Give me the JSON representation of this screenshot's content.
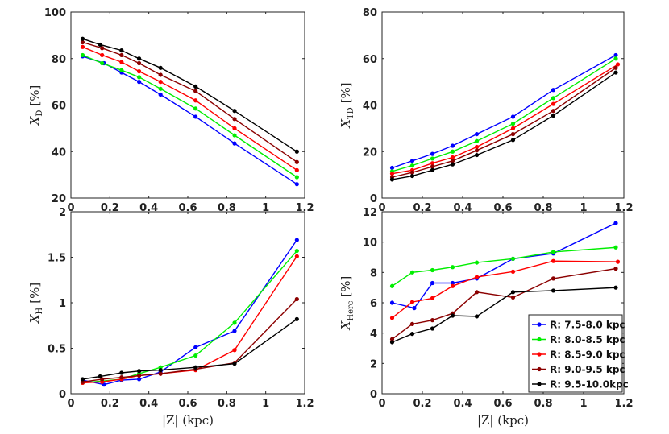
{
  "chart_data": [
    {
      "id": "xd",
      "type": "line",
      "ylabel_main": "X",
      "ylabel_sub": "D",
      "ylabel_unit": "[%]",
      "xlabel": "",
      "xlim": [
        0,
        1.2
      ],
      "ylim": [
        20,
        100
      ],
      "xticks": [
        "0",
        "0.2",
        "0.4",
        "0.6",
        "0.8",
        "1",
        "1.2"
      ],
      "yticks": [
        "20",
        "40",
        "60",
        "80",
        "100"
      ],
      "xtick_values": [
        0,
        0.2,
        0.4,
        0.6,
        0.8,
        1,
        1.2
      ],
      "ytick_values": [
        20,
        40,
        60,
        80,
        100
      ],
      "series": [
        {
          "name": "R: 7.5-8.0 kpc",
          "color": "#0000ff",
          "x": [
            0.06,
            0.17,
            0.26,
            0.35,
            0.46,
            0.64,
            0.84,
            1.16
          ],
          "y": [
            81,
            78,
            74,
            70,
            64.5,
            55,
            43.5,
            26
          ]
        },
        {
          "name": "R: 8.0-8.5 kpc",
          "color": "#00ee00",
          "x": [
            0.06,
            0.16,
            0.26,
            0.35,
            0.46,
            0.64,
            0.84,
            1.16
          ],
          "y": [
            81.5,
            78,
            75,
            72,
            67,
            58.5,
            47,
            29
          ]
        },
        {
          "name": "R: 8.5-9.0 kpc",
          "color": "#ff0000",
          "x": [
            0.06,
            0.16,
            0.26,
            0.35,
            0.46,
            0.64,
            0.84,
            1.16
          ],
          "y": [
            85,
            81.5,
            78.5,
            74.5,
            70,
            62,
            50,
            32
          ]
        },
        {
          "name": "R: 9.0-9.5 kpc",
          "color": "#8b0000",
          "x": [
            0.06,
            0.16,
            0.26,
            0.35,
            0.46,
            0.64,
            0.84,
            1.16
          ],
          "y": [
            87,
            84.5,
            81.5,
            78,
            73,
            66,
            54,
            35.5
          ]
        },
        {
          "name": "R: 9.5-10.0kpc",
          "color": "#000000",
          "x": [
            0.06,
            0.15,
            0.26,
            0.35,
            0.46,
            0.64,
            0.84,
            1.16
          ],
          "y": [
            88.5,
            86,
            83.5,
            80,
            76,
            68,
            57.5,
            40
          ]
        }
      ]
    },
    {
      "id": "xtd",
      "type": "line",
      "ylabel_main": "X",
      "ylabel_sub": "TD",
      "ylabel_unit": "[%]",
      "xlabel": "",
      "xlim": [
        0,
        1.2
      ],
      "ylim": [
        0,
        80
      ],
      "xticks": [
        "0",
        "0.2",
        "0.4",
        "0.6",
        "0.8",
        "1",
        "1.2"
      ],
      "yticks": [
        "0",
        "20",
        "40",
        "60",
        "80"
      ],
      "xtick_values": [
        0,
        0.2,
        0.4,
        0.6,
        0.8,
        1,
        1.2
      ],
      "ytick_values": [
        0,
        20,
        40,
        60,
        80
      ],
      "series": [
        {
          "name": "R: 7.5-8.0 kpc",
          "color": "#0000ff",
          "x": [
            0.05,
            0.15,
            0.25,
            0.35,
            0.47,
            0.65,
            0.85,
            1.16
          ],
          "y": [
            13,
            16,
            19,
            22.5,
            27.5,
            35,
            46.5,
            61.5
          ]
        },
        {
          "name": "R: 8.0-8.5 kpc",
          "color": "#00ee00",
          "x": [
            0.05,
            0.15,
            0.25,
            0.35,
            0.47,
            0.65,
            0.85,
            1.16
          ],
          "y": [
            11.5,
            14,
            17,
            20,
            24.5,
            32,
            43,
            60
          ]
        },
        {
          "name": "R: 8.5-9.0 kpc",
          "color": "#ff0000",
          "x": [
            0.05,
            0.15,
            0.25,
            0.35,
            0.47,
            0.65,
            0.85,
            1.17
          ],
          "y": [
            10.5,
            12,
            15,
            17.5,
            22,
            30,
            40.5,
            57.5
          ]
        },
        {
          "name": "R: 9.0-9.5 kpc",
          "color": "#8b0000",
          "x": [
            0.05,
            0.15,
            0.25,
            0.35,
            0.47,
            0.65,
            0.85,
            1.16
          ],
          "y": [
            9,
            11,
            13.5,
            16,
            20.5,
            27.5,
            37.5,
            56
          ]
        },
        {
          "name": "R: 9.5-10.0kpc",
          "color": "#000000",
          "x": [
            0.05,
            0.15,
            0.25,
            0.35,
            0.47,
            0.65,
            0.85,
            1.16
          ],
          "y": [
            8,
            9.5,
            12,
            14.5,
            18.5,
            25,
            35.5,
            54
          ]
        }
      ]
    },
    {
      "id": "xh",
      "type": "line",
      "ylabel_main": "X",
      "ylabel_sub": "H",
      "ylabel_unit": "[%]",
      "xlabel": "|Z| (kpc)",
      "xlim": [
        0,
        1.2
      ],
      "ylim": [
        0,
        2
      ],
      "xticks": [
        "0",
        "0.2",
        "0.4",
        "0.6",
        "0.8",
        "1",
        "1.2"
      ],
      "yticks": [
        "0",
        "0.5",
        "1",
        "1.5",
        "2"
      ],
      "xtick_values": [
        0,
        0.2,
        0.4,
        0.6,
        0.8,
        1,
        1.2
      ],
      "ytick_values": [
        0,
        0.5,
        1,
        1.5,
        2
      ],
      "series": [
        {
          "name": "R: 7.5-8.0 kpc",
          "color": "#0000ff",
          "x": [
            0.06,
            0.17,
            0.26,
            0.35,
            0.46,
            0.64,
            0.84,
            1.16
          ],
          "y": [
            0.15,
            0.1,
            0.15,
            0.16,
            0.24,
            0.51,
            0.69,
            1.69
          ]
        },
        {
          "name": "R: 8.0-8.5 kpc",
          "color": "#00ee00",
          "x": [
            0.06,
            0.16,
            0.26,
            0.35,
            0.46,
            0.64,
            0.84,
            1.16
          ],
          "y": [
            0.12,
            0.14,
            0.16,
            0.22,
            0.29,
            0.42,
            0.78,
            1.57
          ]
        },
        {
          "name": "R: 8.5-9.0 kpc",
          "color": "#ff0000",
          "x": [
            0.06,
            0.16,
            0.26,
            0.35,
            0.46,
            0.64,
            0.84,
            1.16
          ],
          "y": [
            0.12,
            0.13,
            0.16,
            0.2,
            0.22,
            0.26,
            0.48,
            1.51
          ]
        },
        {
          "name": "R: 9.0-9.5 kpc",
          "color": "#8b0000",
          "x": [
            0.06,
            0.16,
            0.26,
            0.35,
            0.46,
            0.64,
            0.84,
            1.16
          ],
          "y": [
            0.13,
            0.16,
            0.18,
            0.2,
            0.22,
            0.27,
            0.34,
            1.04
          ]
        },
        {
          "name": "R: 9.5-10.0kpc",
          "color": "#000000",
          "x": [
            0.06,
            0.15,
            0.26,
            0.35,
            0.46,
            0.64,
            0.84,
            1.16
          ],
          "y": [
            0.16,
            0.19,
            0.23,
            0.25,
            0.26,
            0.29,
            0.33,
            0.82
          ]
        }
      ]
    },
    {
      "id": "xherc",
      "type": "line",
      "ylabel_main": "X",
      "ylabel_sub": "Herc",
      "ylabel_unit": "[%]",
      "xlabel": "|Z| (kpc)",
      "xlim": [
        0,
        1.2
      ],
      "ylim": [
        0,
        12
      ],
      "xticks": [
        "0",
        "0.2",
        "0.4",
        "0.6",
        "0.8",
        "1",
        "1.2"
      ],
      "yticks": [
        "0",
        "2",
        "4",
        "6",
        "8",
        "10",
        "12"
      ],
      "xtick_values": [
        0,
        0.2,
        0.4,
        0.6,
        0.8,
        1,
        1.2
      ],
      "ytick_values": [
        0,
        2,
        4,
        6,
        8,
        10,
        12
      ],
      "legend_position": "bottom-right",
      "series": [
        {
          "name": "R: 7.5-8.0 kpc",
          "color": "#0000ff",
          "x": [
            0.05,
            0.16,
            0.25,
            0.35,
            0.47,
            0.65,
            0.85,
            1.16
          ],
          "y": [
            6,
            5.65,
            7.3,
            7.3,
            7.6,
            8.9,
            9.25,
            11.25
          ]
        },
        {
          "name": "R: 8.0-8.5 kpc",
          "color": "#00ee00",
          "x": [
            0.05,
            0.15,
            0.25,
            0.35,
            0.47,
            0.65,
            0.85,
            1.16
          ],
          "y": [
            7.1,
            8,
            8.15,
            8.35,
            8.65,
            8.9,
            9.35,
            9.65
          ]
        },
        {
          "name": "R: 8.5-9.0 kpc",
          "color": "#ff0000",
          "x": [
            0.05,
            0.15,
            0.25,
            0.35,
            0.47,
            0.65,
            0.85,
            1.17
          ],
          "y": [
            5,
            6.05,
            6.3,
            7.1,
            7.7,
            8.05,
            8.75,
            8.7
          ]
        },
        {
          "name": "R: 9.0-9.5 kpc",
          "color": "#8b0000",
          "x": [
            0.05,
            0.15,
            0.25,
            0.35,
            0.47,
            0.65,
            0.85,
            1.16
          ],
          "y": [
            3.6,
            4.6,
            4.85,
            5.3,
            6.7,
            6.35,
            7.6,
            8.25
          ]
        },
        {
          "name": "R: 9.5-10.0kpc",
          "color": "#000000",
          "x": [
            0.05,
            0.15,
            0.25,
            0.35,
            0.47,
            0.65,
            0.85,
            1.16
          ],
          "y": [
            3.4,
            3.95,
            4.3,
            5.15,
            5.1,
            6.7,
            6.8,
            7
          ]
        }
      ]
    }
  ]
}
